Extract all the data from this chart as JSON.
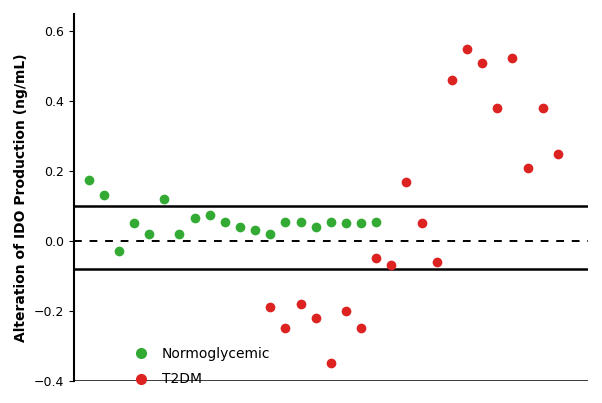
{
  "normoglycemic_x": [
    1,
    2,
    3,
    4,
    5,
    6,
    7,
    8,
    9,
    10,
    11,
    12,
    13,
    14,
    15,
    16,
    17,
    18,
    19,
    20
  ],
  "normoglycemic_y": [
    0.175,
    0.13,
    -0.03,
    0.05,
    0.02,
    0.12,
    0.02,
    0.065,
    0.075,
    0.055,
    0.04,
    0.03,
    0.02,
    0.055,
    0.055,
    0.04,
    0.055,
    0.05,
    0.05,
    0.055
  ],
  "t2dm_x": [
    13,
    14,
    15,
    16,
    17,
    18,
    19,
    20,
    21,
    22,
    23,
    24,
    25,
    26,
    27,
    28,
    29,
    30,
    31,
    32
  ],
  "t2dm_y": [
    -0.19,
    -0.25,
    -0.18,
    -0.22,
    -0.35,
    -0.2,
    -0.25,
    -0.05,
    -0.07,
    0.17,
    0.05,
    -0.06,
    0.46,
    0.55,
    0.51,
    0.38,
    0.525,
    0.21,
    0.38,
    0.25
  ],
  "line_upper": 0.1,
  "line_dotted": 0.0,
  "line_lower": -0.08,
  "ylim": [
    -0.4,
    0.65
  ],
  "yticks": [
    -0.4,
    -0.2,
    0.0,
    0.2,
    0.4,
    0.6
  ],
  "ylabel": "Alteration of IDO Production (ng/mL)",
  "color_normo": "#33aa33",
  "color_t2dm": "#dd2222",
  "legend_normo": "Normoglycemic",
  "legend_t2dm": "T2DM",
  "background_color": "#ffffff",
  "marker_size": 7,
  "xlim": [
    0,
    34
  ]
}
